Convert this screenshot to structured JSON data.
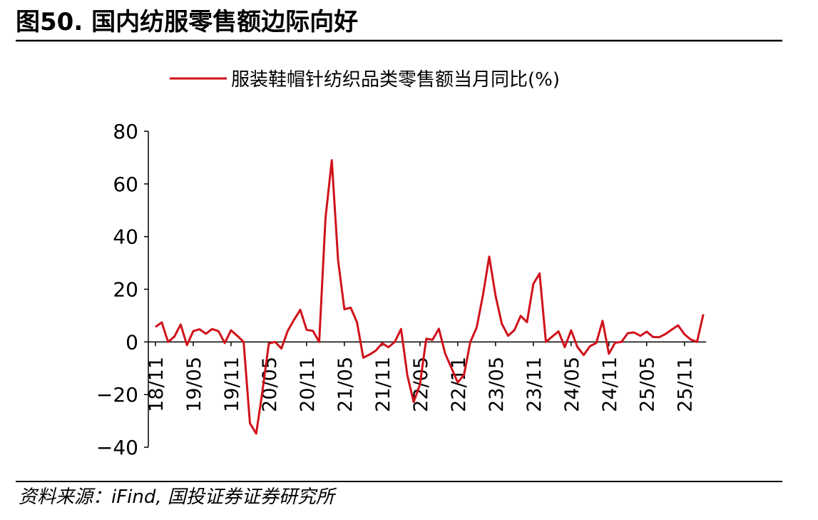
{
  "chart_data": {
    "type": "line",
    "title": "图50. 国内纺服零售额边际向好",
    "source": "资料来源：iFind, 国投证券证券研究所",
    "categories": [
      "18/11",
      null,
      null,
      null,
      null,
      null,
      "19/05",
      null,
      null,
      null,
      null,
      null,
      "19/11",
      null,
      null,
      null,
      null,
      null,
      "20/05",
      null,
      null,
      null,
      null,
      null,
      "20/11",
      null,
      null,
      null,
      null,
      null,
      "21/05",
      null,
      null,
      null,
      null,
      null,
      "21/11",
      null,
      null,
      null,
      null,
      null,
      "22/05",
      null,
      null,
      null,
      null,
      null,
      "22/11",
      null,
      null,
      null,
      null,
      null,
      "23/05",
      null,
      null,
      null,
      null,
      null,
      "23/11",
      null,
      null,
      null,
      null,
      null,
      "24/05",
      null,
      null,
      null,
      null,
      null,
      "24/11",
      null,
      null,
      null,
      null,
      null,
      "25/05",
      null,
      null,
      null,
      null,
      null,
      "25/11",
      null,
      null,
      null
    ],
    "series": [
      {
        "name": "服装鞋帽针纺织品类零售额当月同比(%)",
        "color": "#d0121b",
        "values": [
          5.7,
          7.4,
          0,
          2,
          6.6,
          -1.2,
          4.1,
          4.8,
          3.1,
          4.9,
          4.1,
          -0.4,
          4.4,
          2.3,
          0,
          -30.9,
          -34.8,
          -18.5,
          -0.6,
          0,
          -2.5,
          4.2,
          8.4,
          12.2,
          4.6,
          4.2,
          0,
          47,
          69,
          31,
          12.4,
          13,
          7.5,
          -6,
          -4.8,
          -3.3,
          -0.5,
          -2,
          0,
          4.9,
          -12.7,
          -22.8,
          -16.2,
          1.2,
          0.8,
          5,
          -4.4,
          -9.9,
          -15.4,
          -12.5,
          0,
          5.4,
          17.7,
          32.4,
          17.6,
          6.9,
          2.3,
          4.5,
          9.9,
          7.5,
          22,
          26,
          0,
          2,
          4,
          -2,
          4.4,
          -1.9,
          -5,
          -1.6,
          -0.4,
          8,
          -4.5,
          -0.3,
          0,
          3.3,
          3.6,
          2.3,
          3.9,
          1.9,
          1.8,
          3,
          4.7,
          6.3,
          2.9,
          0.9,
          0,
          10.5
        ]
      }
    ],
    "ylim": [
      -40,
      80
    ],
    "yticks": [
      {
        "value": -40,
        "label": "−40"
      },
      {
        "value": -20,
        "label": "−20"
      },
      0,
      20,
      40,
      60,
      80
    ],
    "legend": "top"
  }
}
